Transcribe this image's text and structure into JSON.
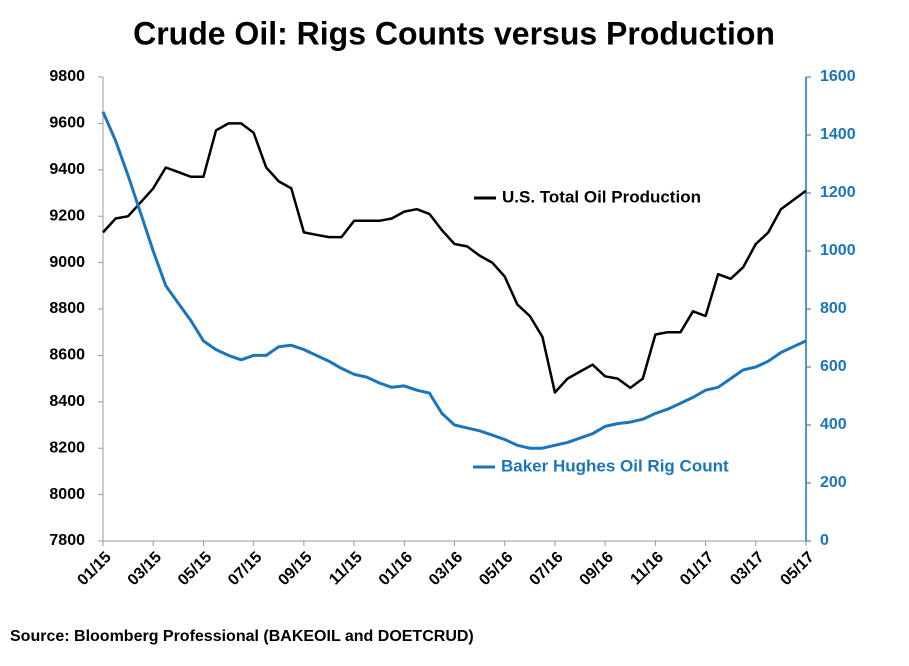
{
  "chart_data": {
    "type": "line",
    "title": "Crude Oil: Rigs Counts versus Production",
    "source": "Source: Bloomberg Professional  (BAKEOIL and DOETCRUD)",
    "categories": [
      "01/15",
      null,
      null,
      null,
      "03/15",
      null,
      null,
      null,
      "05/15",
      null,
      null,
      null,
      "07/15",
      null,
      null,
      null,
      "09/15",
      null,
      null,
      null,
      "11/15",
      null,
      null,
      null,
      "01/16",
      null,
      null,
      null,
      "03/16",
      null,
      null,
      null,
      "05/16",
      null,
      null,
      null,
      "07/16",
      null,
      null,
      null,
      "09/16",
      null,
      null,
      null,
      "11/16",
      null,
      null,
      null,
      "01/17",
      null,
      null,
      null,
      "03/17",
      null,
      null,
      null,
      "05/17"
    ],
    "series": [
      {
        "name": "U.S. Total Oil Production",
        "color": "#000000",
        "axis": "y",
        "values": [
          9130,
          9190,
          9200,
          9260,
          9320,
          9410,
          9390,
          9370,
          9370,
          9570,
          9600,
          9600,
          9560,
          9410,
          9350,
          9320,
          9130,
          9120,
          9110,
          9110,
          9180,
          9180,
          9180,
          9190,
          9220,
          9230,
          9210,
          9140,
          9080,
          9070,
          9030,
          9000,
          8940,
          8820,
          8770,
          8680,
          8440,
          8500,
          8530,
          8560,
          8510,
          8500,
          8460,
          8500,
          8690,
          8700,
          8700,
          8790,
          8770,
          8950,
          8930,
          8980,
          9080,
          9130,
          9230,
          9270,
          9310
        ]
      },
      {
        "name": "Baker Hughes Oil Rig Count",
        "color": "#1b75bb",
        "axis": "y2",
        "values": [
          1480,
          1380,
          1260,
          1130,
          1000,
          880,
          820,
          760,
          690,
          660,
          640,
          625,
          640,
          640,
          670,
          675,
          660,
          640,
          620,
          595,
          575,
          565,
          545,
          530,
          535,
          520,
          510,
          440,
          400,
          390,
          380,
          365,
          350,
          330,
          320,
          320,
          330,
          340,
          355,
          370,
          395,
          405,
          410,
          420,
          440,
          455,
          475,
          495,
          520,
          530,
          560,
          590,
          600,
          620,
          650,
          670,
          690
        ]
      }
    ],
    "ylim": [
      7800,
      9800
    ],
    "yticks": [
      7800,
      8000,
      8200,
      8400,
      8600,
      8800,
      9000,
      9200,
      9400,
      9600,
      9800
    ],
    "y2lim": [
      0,
      1600
    ],
    "y2ticks": [
      0,
      200,
      400,
      600,
      800,
      1000,
      1200,
      1400,
      1600
    ],
    "grid": false
  }
}
